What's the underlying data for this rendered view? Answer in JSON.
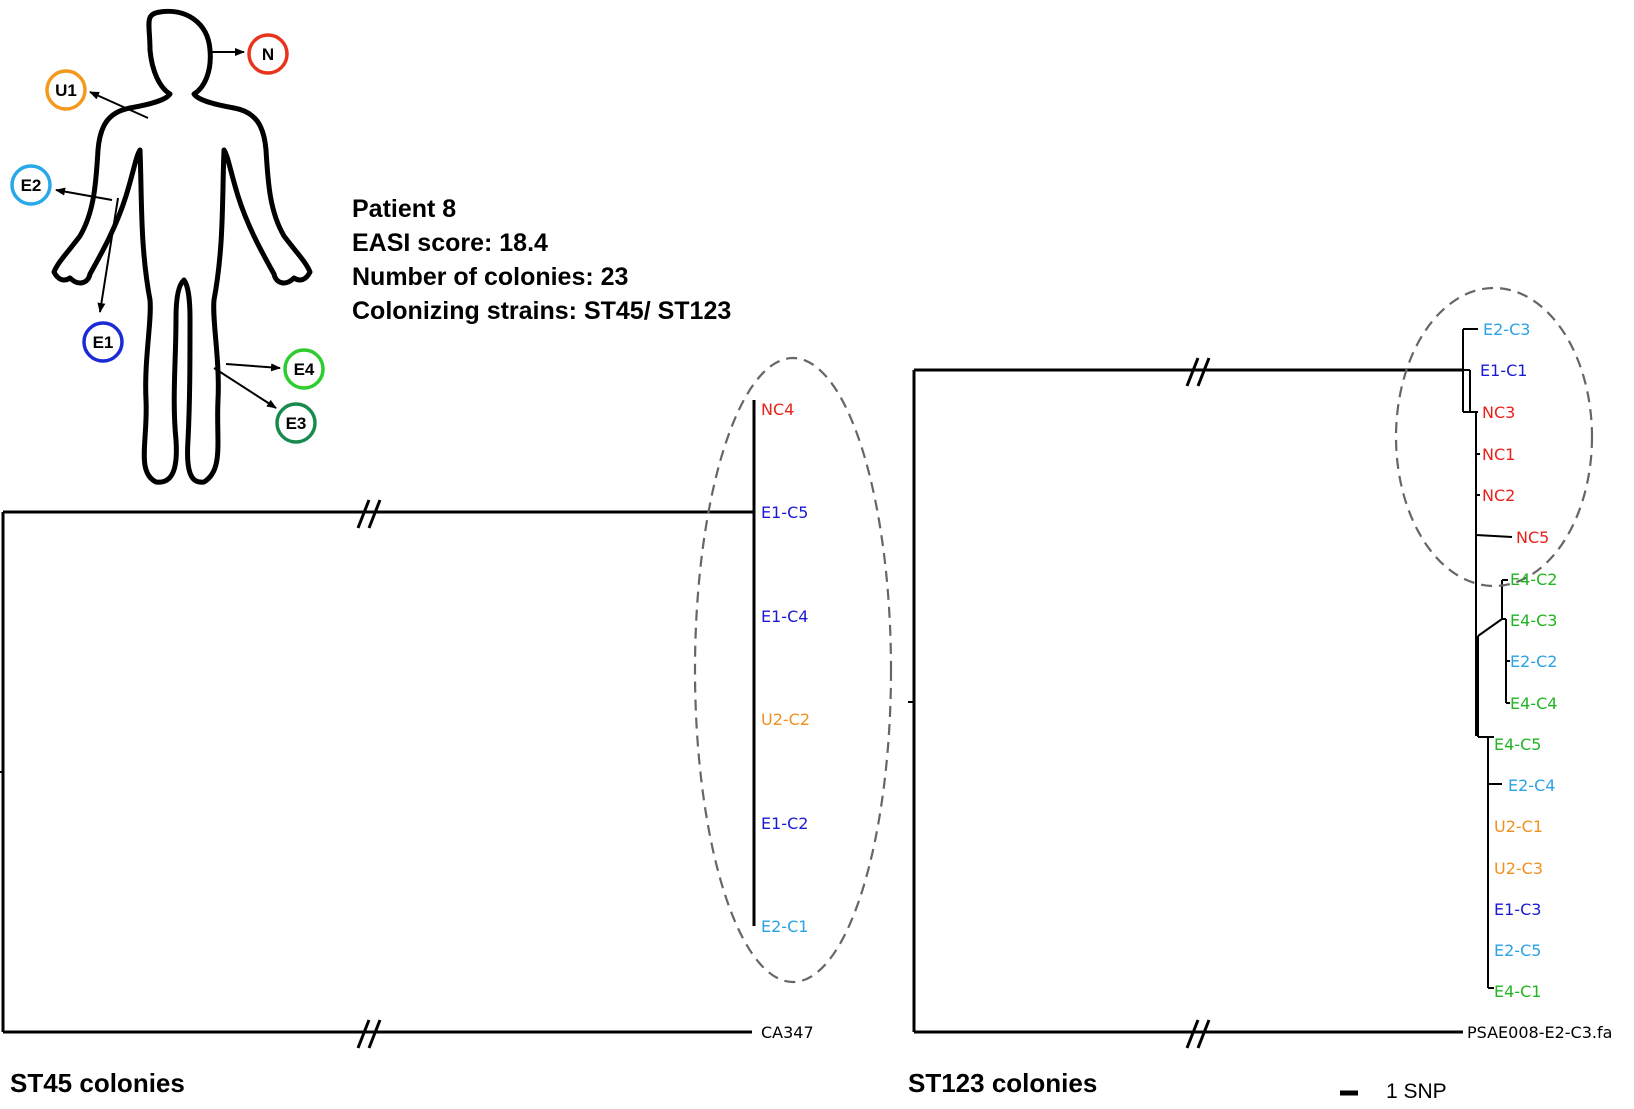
{
  "patient_info": {
    "line1": "Patient 8",
    "line2": "EASI score: 18.4",
    "line3": "Number of colonies: 23",
    "line4": "Colonizing strains: ST45/ ST123"
  },
  "body_sites": [
    {
      "label": "N",
      "color": "#e8341c"
    },
    {
      "label": "U1",
      "color": "#f39a1e"
    },
    {
      "label": "E2",
      "color": "#27a8e8"
    },
    {
      "label": "E1",
      "color": "#1a2bd6"
    },
    {
      "label": "E4",
      "color": "#2ecc2e"
    },
    {
      "label": "E3",
      "color": "#178a4e"
    }
  ],
  "colors": {
    "NC": "#e8221b",
    "E1": "#1a1ad6",
    "E2": "#2aa2e6",
    "E4": "#22b522",
    "U2": "#f0901e",
    "ref": "#000000"
  },
  "tree_st45": {
    "caption": "ST45 colonies",
    "leaves": [
      "NC4",
      "E1-C5",
      "E1-C4",
      "U2-C2",
      "E1-C2",
      "E2-C1"
    ],
    "reference": "CA347"
  },
  "tree_st123": {
    "caption": "ST123 colonies",
    "leaves": [
      "E2-C3",
      "E1-C1",
      "NC3",
      "NC1",
      "NC2",
      "NC5",
      "E4-C2",
      "E4-C3",
      "E2-C2",
      "E4-C4",
      "E4-C5",
      "E2-C4",
      "U2-C1",
      "U2-C3",
      "E1-C3",
      "E2-C5",
      "E4-C1"
    ],
    "reference": "PSAE008-E2-C3.fa"
  },
  "scale_bar": {
    "label": "1 SNP"
  }
}
